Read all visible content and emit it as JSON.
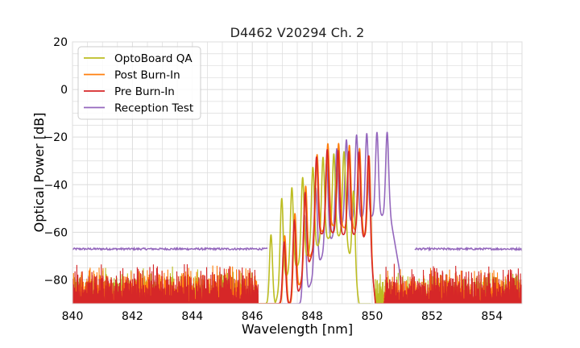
{
  "chart_data": {
    "type": "line",
    "title": "D4462 V20294 Ch. 2",
    "xlabel": "Wavelength [nm]",
    "ylabel": "Optical Power [dB]",
    "xlim": [
      840,
      855
    ],
    "ylim": [
      -90,
      20
    ],
    "xticks": [
      840,
      842,
      844,
      846,
      848,
      850,
      852,
      854
    ],
    "xtick_labels": [
      "840",
      "842",
      "844",
      "846",
      "848",
      "850",
      "852",
      "854"
    ],
    "yticks": [
      20,
      0,
      -20,
      -40,
      -60,
      -80
    ],
    "ytick_labels": [
      "20",
      "0",
      "−20",
      "−40",
      "−60",
      "−80"
    ],
    "grid": true,
    "legend_position": "top-left",
    "series": [
      {
        "name": "OptoBoard QA",
        "color": "#bcbd22",
        "noise": {
          "from": 840,
          "to": 846.2,
          "floor": -90,
          "top": -74
        },
        "peaks": [
          846.62,
          846.98,
          847.32,
          847.68,
          848.02,
          848.36,
          848.72,
          849.06,
          849.38
        ],
        "envelope": [
          [
            846.2,
            -85
          ],
          [
            846.6,
            -62
          ],
          [
            847.0,
            -45
          ],
          [
            847.6,
            -38
          ],
          [
            848.4,
            -28
          ],
          [
            849.1,
            -26
          ],
          [
            849.5,
            -50
          ],
          [
            849.8,
            -74
          ],
          [
            849.95,
            -90
          ]
        ],
        "tail": {
          "from": 850.1,
          "to": 855,
          "floor": -90,
          "top": -76
        }
      },
      {
        "name": "Post Burn-In",
        "color": "#ff7f0e",
        "noise": {
          "from": 840,
          "to": 846.2,
          "floor": -90,
          "top": -73
        },
        "peaks": [
          847.08,
          847.42,
          847.78,
          848.16,
          848.52,
          848.88,
          849.24,
          849.58,
          849.9
        ],
        "envelope": [
          [
            846.2,
            -80
          ],
          [
            846.9,
            -66
          ],
          [
            847.3,
            -56
          ],
          [
            847.8,
            -40
          ],
          [
            848.2,
            -26
          ],
          [
            848.6,
            -22
          ],
          [
            849.0,
            -23
          ],
          [
            849.5,
            -24
          ],
          [
            849.9,
            -28
          ],
          [
            850.15,
            -60
          ],
          [
            850.4,
            -80
          ]
        ],
        "tail": {
          "from": 850.4,
          "to": 855,
          "floor": -90,
          "top": -74
        }
      },
      {
        "name": "Pre Burn-In",
        "color": "#d62728",
        "noise": {
          "from": 840,
          "to": 846.2,
          "floor": -90,
          "top": -72
        },
        "peaks": [
          847.06,
          847.4,
          847.76,
          848.14,
          848.5,
          848.86,
          849.22,
          849.56,
          849.88
        ],
        "envelope": [
          [
            846.2,
            -80
          ],
          [
            846.9,
            -68
          ],
          [
            847.3,
            -58
          ],
          [
            847.8,
            -42
          ],
          [
            848.2,
            -26
          ],
          [
            848.6,
            -25
          ],
          [
            849.0,
            -26
          ],
          [
            849.5,
            -26
          ],
          [
            849.9,
            -28
          ],
          [
            850.15,
            -60
          ],
          [
            850.4,
            -80
          ]
        ],
        "tail": {
          "from": 850.4,
          "to": 855,
          "floor": -90,
          "top": -73
        }
      },
      {
        "name": "Reception Test",
        "color": "#9467bd",
        "baseline": -67,
        "peaks": [
          847.74,
          848.12,
          848.48,
          848.82,
          849.14,
          849.48,
          849.82,
          850.16,
          850.5
        ],
        "envelope": [
          [
            846.5,
            -66
          ],
          [
            847.5,
            -60
          ],
          [
            848.0,
            -45
          ],
          [
            848.5,
            -30
          ],
          [
            849.0,
            -22
          ],
          [
            849.5,
            -19
          ],
          [
            850.2,
            -18
          ],
          [
            850.6,
            -18
          ],
          [
            850.9,
            -40
          ],
          [
            851.05,
            -64
          ],
          [
            851.4,
            -66
          ]
        ]
      }
    ]
  }
}
